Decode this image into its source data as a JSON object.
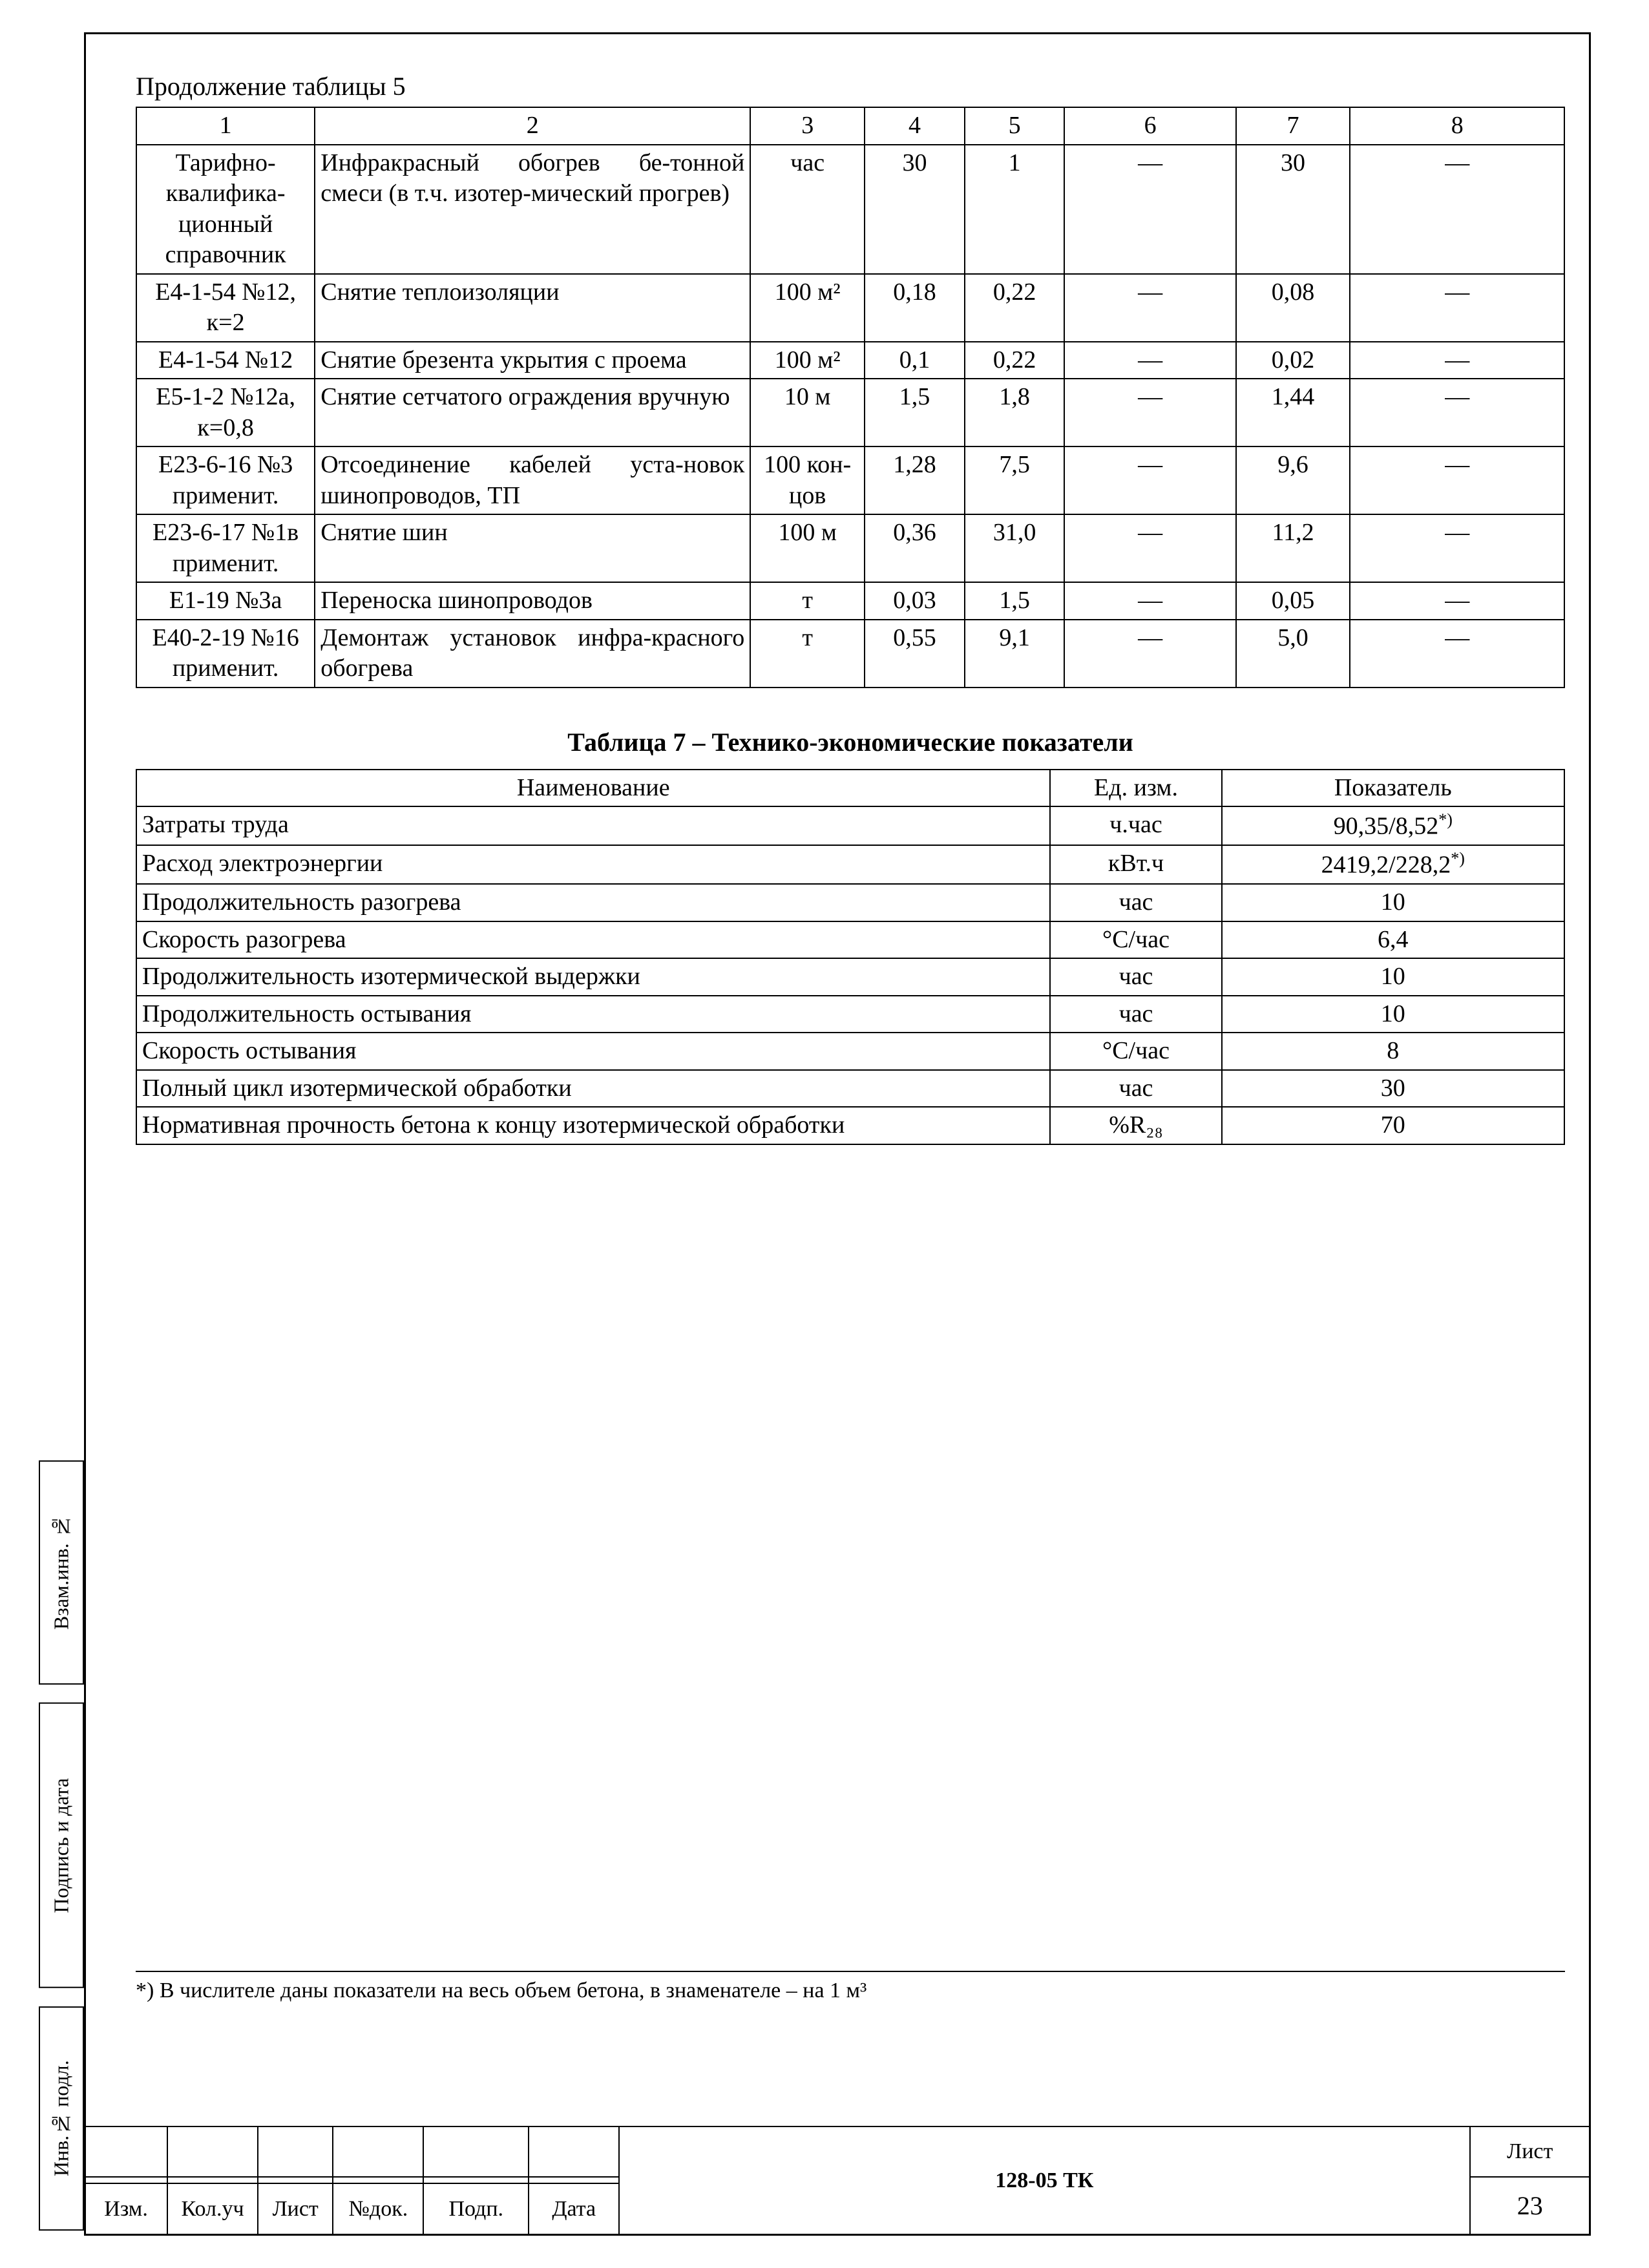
{
  "caption5": "Продолжение таблицы 5",
  "table5": {
    "col_widths_pct": [
      12.5,
      30.5,
      8,
      7,
      7,
      12,
      8,
      15
    ],
    "headers": [
      "1",
      "2",
      "3",
      "4",
      "5",
      "6",
      "7",
      "8"
    ],
    "rows": [
      {
        "c1": "Тарифно-квалифика-ционный справочник",
        "c2": "Инфракрасный обогрев бе-тонной смеси (в т.ч. изотер-мический прогрев)",
        "c3": "час",
        "c4": "30",
        "c5": "1",
        "c6": "—",
        "c7": "30",
        "c8": "—"
      },
      {
        "c1": "Е4-1-54 №12, к=2",
        "c2": "Снятие теплоизоляции",
        "c3": "100 м²",
        "c4": "0,18",
        "c5": "0,22",
        "c6": "—",
        "c7": "0,08",
        "c8": "—"
      },
      {
        "c1": "Е4-1-54 №12",
        "c2": "Снятие брезента укрытия с проема",
        "c3": "100 м²",
        "c4": "0,1",
        "c5": "0,22",
        "c6": "—",
        "c7": "0,02",
        "c8": "—"
      },
      {
        "c1": "Е5-1-2 №12а, к=0,8",
        "c2": "Снятие сетчатого ограждения вручную",
        "c3": "10 м",
        "c4": "1,5",
        "c5": "1,8",
        "c6": "—",
        "c7": "1,44",
        "c8": "—"
      },
      {
        "c1": "Е23-6-16 №3 применит.",
        "c2": "Отсоединение кабелей уста-новок шинопроводов, ТП",
        "c3": "100 кон-цов",
        "c4": "1,28",
        "c5": "7,5",
        "c6": "—",
        "c7": "9,6",
        "c8": "—"
      },
      {
        "c1": "Е23-6-17 №1в применит.",
        "c2": "Снятие шин",
        "c3": "100 м",
        "c4": "0,36",
        "c5": "31,0",
        "c6": "—",
        "c7": "11,2",
        "c8": "—"
      },
      {
        "c1": "Е1-19 №3а",
        "c2": "Переноска шинопроводов",
        "c3": "т",
        "c4": "0,03",
        "c5": "1,5",
        "c6": "—",
        "c7": "0,05",
        "c8": "—"
      },
      {
        "c1": "Е40-2-19 №16 применит.",
        "c2": "Демонтаж установок инфра-красного обогрева",
        "c3": "т",
        "c4": "0,55",
        "c5": "9,1",
        "c6": "—",
        "c7": "5,0",
        "c8": "—"
      }
    ]
  },
  "caption7": "Таблица 7 – Технико-экономические показатели",
  "table7": {
    "col_widths_pct": [
      64,
      12,
      24
    ],
    "headers": {
      "h1": "Наименование",
      "h2": "Ед. изм.",
      "h3": "Показатель"
    },
    "rows": [
      {
        "name": "Затраты труда",
        "unit": "ч.час",
        "value": "90,35/8,52",
        "sup": "*)"
      },
      {
        "name": "Расход электроэнергии",
        "unit": "кВт.ч",
        "value": "2419,2/228,2",
        "sup": "*)"
      },
      {
        "name": "Продолжительность разогрева",
        "unit": "час",
        "value": "10",
        "sup": ""
      },
      {
        "name": "Скорость разогрева",
        "unit": "°С/час",
        "value": "6,4",
        "sup": ""
      },
      {
        "name": "Продолжительность изотермической выдержки",
        "unit": "час",
        "value": "10",
        "sup": ""
      },
      {
        "name": "Продолжительность остывания",
        "unit": "час",
        "value": "10",
        "sup": ""
      },
      {
        "name": "Скорость остывания",
        "unit": "°С/час",
        "value": "8",
        "sup": ""
      },
      {
        "name": "Полный цикл изотермической обработки",
        "unit": "час",
        "value": "30",
        "sup": ""
      },
      {
        "name": "Нормативная прочность бетона к концу изотермической обработки",
        "unit": "%R₂₈",
        "value": "70",
        "sup": ""
      }
    ]
  },
  "footnote": "*) В числителе даны показатели на весь объем бетона, в знаменателе – на 1 м³",
  "side_labels": {
    "a": "Взам.инв. №",
    "b": "Подпись и дата",
    "c": "Инв.№ подл."
  },
  "title_block": {
    "cols": {
      "izm": "Изм.",
      "koluch": "Кол.уч",
      "list": "Лист",
      "ndok": "№док.",
      "podp": "Подп.",
      "data": "Дата"
    },
    "doc_code": "128-05 ТК",
    "sheet_label": "Лист",
    "sheet_no": "23"
  }
}
